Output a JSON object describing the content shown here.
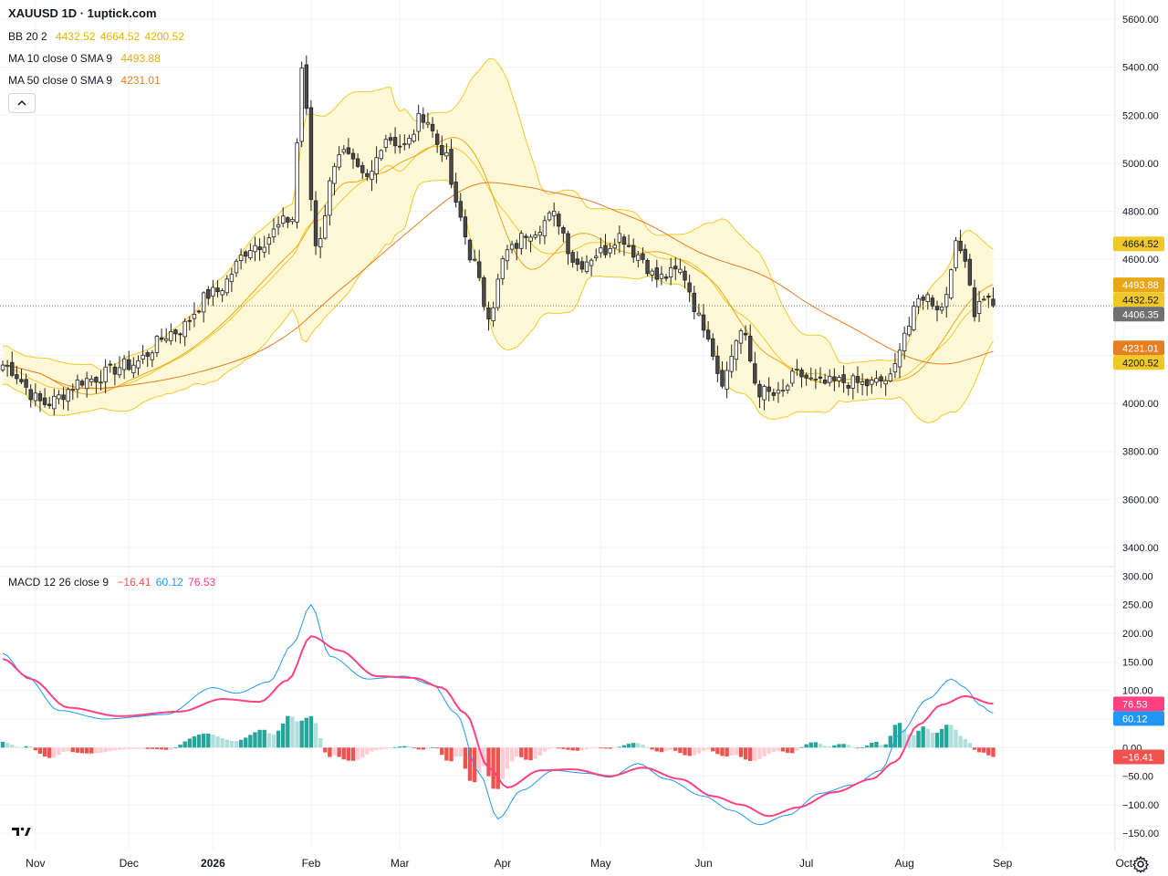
{
  "title": "XAUUSD 1D · 1uptick.com",
  "legend": {
    "bb": {
      "name": "BB 20 2",
      "values": [
        "4432.52",
        "4664.52",
        "4200.52"
      ]
    },
    "ma10": {
      "name": "MA 10 close 0 SMA 9",
      "value": "4493.88"
    },
    "ma50": {
      "name": "MA 50 close 0 SMA 9",
      "value": "4231.01"
    },
    "macd": {
      "name": "MACD 12 26 close 9",
      "values": [
        "−16.41",
        "60.12",
        "76.53"
      ]
    }
  },
  "colors": {
    "bull_body": "#ffffff",
    "bear_body": "#4a4a4a",
    "candle_wick": "#222222",
    "bb_line": "#f0c929",
    "bb_fill": "#fff8d6",
    "ma10": "#e8a716",
    "ma50": "#e67e22",
    "macd_line": "#2196f3",
    "signal_line": "#ff4081",
    "hist_pos_strong": "#26a69a",
    "hist_pos_weak": "#b2dfdb",
    "hist_neg_strong": "#ef5350",
    "hist_neg_weak": "#ffcdd2",
    "last_price": "#707070",
    "grid": "#f0f3fa",
    "axis_text": "#131722"
  },
  "chart_data": [
    {
      "type": "candlestick",
      "title": "XAUUSD 1D",
      "ylim": [
        3320,
        5680
      ],
      "y_ticks": [
        "5600.00",
        "5400.00",
        "5200.00",
        "5000.00",
        "4800.00",
        "4600.00",
        "4400.00",
        "4200.00",
        "4000.00",
        "3800.00",
        "3600.00",
        "3400.00"
      ],
      "x_ticks": [
        "Nov",
        "Dec",
        "2026",
        "Feb",
        "Mar",
        "Apr",
        "May",
        "Jun",
        "Jul",
        "Aug",
        "Sep",
        "Oct"
      ],
      "close_anchors": [
        [
          0,
          4160
        ],
        [
          9,
          4000
        ],
        [
          18,
          4100
        ],
        [
          27,
          4160
        ],
        [
          37,
          4300
        ],
        [
          45,
          4460
        ],
        [
          54,
          4660
        ],
        [
          62,
          4770
        ],
        [
          64,
          5400
        ],
        [
          67,
          4660
        ],
        [
          72,
          5050
        ],
        [
          78,
          4930
        ],
        [
          82,
          5110
        ],
        [
          86,
          5070
        ],
        [
          90,
          5200
        ],
        [
          94,
          5060
        ],
        [
          98,
          4770
        ],
        [
          100,
          4620
        ],
        [
          104,
          4380
        ],
        [
          108,
          4630
        ],
        [
          113,
          4720
        ],
        [
          118,
          4780
        ],
        [
          123,
          4580
        ],
        [
          128,
          4630
        ],
        [
          132,
          4700
        ],
        [
          136,
          4620
        ],
        [
          140,
          4520
        ],
        [
          145,
          4550
        ],
        [
          150,
          4330
        ],
        [
          154,
          4100
        ],
        [
          158,
          4300
        ],
        [
          162,
          4050
        ],
        [
          166,
          4030
        ],
        [
          170,
          4120
        ],
        [
          175,
          4080
        ],
        [
          180,
          4090
        ],
        [
          185,
          4080
        ],
        [
          190,
          4100
        ],
        [
          193,
          4300
        ],
        [
          197,
          4450
        ],
        [
          201,
          4400
        ],
        [
          204,
          4650
        ],
        [
          206,
          4620
        ],
        [
          208,
          4380
        ],
        [
          210,
          4450
        ],
        [
          212,
          4406
        ]
      ],
      "last_close": "4406.35",
      "price_labels": [
        {
          "text": "4664.52",
          "value": 4664.52,
          "color": "#f0c929"
        },
        {
          "text": "4493.88",
          "value": 4493.88,
          "color": "#e8a716"
        },
        {
          "text": "4432.52",
          "value": 4432.52,
          "color": "#f0c929"
        },
        {
          "text": "4406.35",
          "value": 4406.35,
          "color": "#707070"
        },
        {
          "text": "4231.01",
          "value": 4231.01,
          "color": "#e67e22"
        },
        {
          "text": "4200.52",
          "value": 4200.52,
          "color": "#f0c929"
        }
      ]
    },
    {
      "type": "line",
      "title": "MACD 12 26 close 9",
      "ylim": [
        -180,
        315
      ],
      "y_ticks": [
        "300.00",
        "250.00",
        "200.00",
        "150.00",
        "100.00",
        "50.00",
        "0.00",
        "−50.00",
        "−100.00",
        "−150.00"
      ],
      "macd_anchors": [
        [
          0,
          165
        ],
        [
          5,
          125
        ],
        [
          12,
          65
        ],
        [
          22,
          50
        ],
        [
          35,
          58
        ],
        [
          45,
          105
        ],
        [
          50,
          95
        ],
        [
          57,
          115
        ],
        [
          62,
          180
        ],
        [
          66,
          250
        ],
        [
          70,
          160
        ],
        [
          78,
          120
        ],
        [
          86,
          125
        ],
        [
          92,
          110
        ],
        [
          97,
          60
        ],
        [
          102,
          -45
        ],
        [
          106,
          -125
        ],
        [
          111,
          -75
        ],
        [
          118,
          -40
        ],
        [
          125,
          -45
        ],
        [
          130,
          -52
        ],
        [
          136,
          -28
        ],
        [
          142,
          -55
        ],
        [
          150,
          -85
        ],
        [
          156,
          -110
        ],
        [
          162,
          -135
        ],
        [
          168,
          -118
        ],
        [
          175,
          -80
        ],
        [
          182,
          -65
        ],
        [
          188,
          -40
        ],
        [
          192,
          25
        ],
        [
          198,
          85
        ],
        [
          203,
          120
        ],
        [
          206,
          105
        ],
        [
          209,
          75
        ],
        [
          212,
          60.12
        ]
      ],
      "signal_anchors": [
        [
          0,
          155
        ],
        [
          6,
          120
        ],
        [
          14,
          70
        ],
        [
          25,
          55
        ],
        [
          38,
          63
        ],
        [
          47,
          85
        ],
        [
          55,
          80
        ],
        [
          61,
          118
        ],
        [
          66,
          195
        ],
        [
          72,
          170
        ],
        [
          80,
          125
        ],
        [
          88,
          122
        ],
        [
          94,
          105
        ],
        [
          99,
          60
        ],
        [
          104,
          -35
        ],
        [
          108,
          -70
        ],
        [
          115,
          -40
        ],
        [
          122,
          -38
        ],
        [
          130,
          -50
        ],
        [
          137,
          -35
        ],
        [
          145,
          -55
        ],
        [
          152,
          -85
        ],
        [
          158,
          -100
        ],
        [
          164,
          -120
        ],
        [
          170,
          -105
        ],
        [
          178,
          -78
        ],
        [
          186,
          -55
        ],
        [
          191,
          -25
        ],
        [
          196,
          40
        ],
        [
          201,
          75
        ],
        [
          206,
          90
        ],
        [
          212,
          76.53
        ]
      ],
      "hist_last": "−16.41",
      "price_labels": [
        {
          "text": "76.53",
          "value": 76.53,
          "color": "#ff4081"
        },
        {
          "text": "60.12",
          "value": 60.12,
          "color": "#2196f3"
        },
        {
          "text": "−16.41",
          "value": -16.41,
          "color": "#ef5350"
        }
      ]
    }
  ]
}
